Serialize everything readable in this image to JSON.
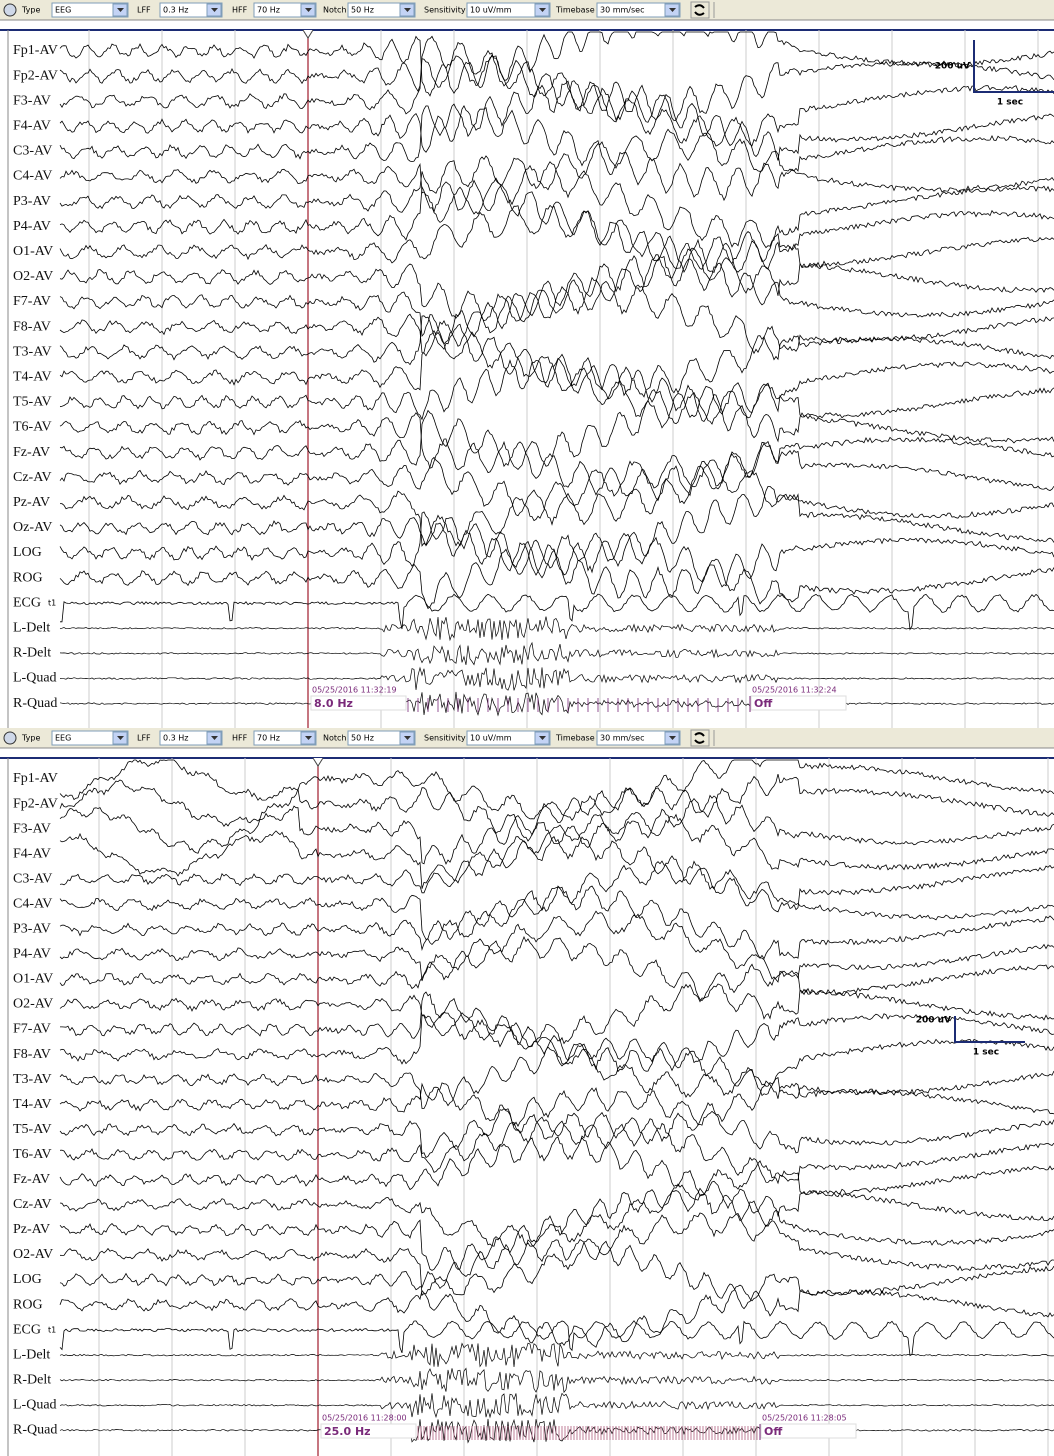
{
  "panels": [
    {
      "toolbar": {
        "type_label": "Type",
        "type": "EEG",
        "lff_label": "LFF",
        "lff": "0.3 Hz",
        "hff_label": "HFF",
        "hff": "70 Hz",
        "notch_label": "Notch",
        "notch": "50 Hz",
        "sensitivity_label": "Sensitivity",
        "sensitivity": "10 uV/mm",
        "timebase_label": "Timebase",
        "timebase": "30 mm/sec"
      },
      "channels": [
        "Fp1-AV",
        "Fp2-AV",
        "F3-AV",
        "F4-AV",
        "C3-AV",
        "C4-AV",
        "P3-AV",
        "P4-AV",
        "O1-AV",
        "O2-AV",
        "F7-AV",
        "F8-AV",
        "T3-AV",
        "T4-AV",
        "T5-AV",
        "T6-AV",
        "Fz-AV",
        "Cz-AV",
        "Pz-AV",
        "Oz-AV",
        "LOG",
        "ROG",
        "ECG",
        "L-Delt",
        "R-Delt",
        "L-Quad",
        "R-Quad"
      ],
      "ecg_tag": "t1",
      "stim_start": {
        "timestamp": "05/25/2016 11:32:19",
        "label": "8.0 Hz"
      },
      "stim_end": {
        "timestamp": "05/25/2016 11:32:24",
        "label": "Off"
      },
      "scale": {
        "amplitude": "200 uV",
        "time": "1 sec"
      }
    },
    {
      "toolbar": {
        "type_label": "Type",
        "type": "EEG",
        "lff_label": "LFF",
        "lff": "0.3 Hz",
        "hff_label": "HFF",
        "hff": "70 Hz",
        "notch_label": "Notch",
        "notch": "50 Hz",
        "sensitivity_label": "Sensitivity",
        "sensitivity": "10 uV/mm",
        "timebase_label": "Timebase",
        "timebase": "30 mm/sec"
      },
      "channels": [
        "Fp1-AV",
        "Fp2-AV",
        "F3-AV",
        "F4-AV",
        "C3-AV",
        "C4-AV",
        "P3-AV",
        "P4-AV",
        "O1-AV",
        "O2-AV",
        "F7-AV",
        "F8-AV",
        "T3-AV",
        "T4-AV",
        "T5-AV",
        "T6-AV",
        "Fz-AV",
        "Cz-AV",
        "Pz-AV",
        "O2-AV",
        "LOG",
        "ROG",
        "ECG",
        "L-Delt",
        "R-Delt",
        "L-Quad",
        "R-Quad"
      ],
      "ecg_tag": "t1",
      "stim_start": {
        "timestamp": "05/25/2016 11:28:00",
        "label": "25.0 Hz"
      },
      "stim_end": {
        "timestamp": "05/25/2016 11:28:05",
        "label": "Off"
      },
      "scale": {
        "amplitude": "200 uV",
        "time": "1 sec"
      }
    }
  ]
}
